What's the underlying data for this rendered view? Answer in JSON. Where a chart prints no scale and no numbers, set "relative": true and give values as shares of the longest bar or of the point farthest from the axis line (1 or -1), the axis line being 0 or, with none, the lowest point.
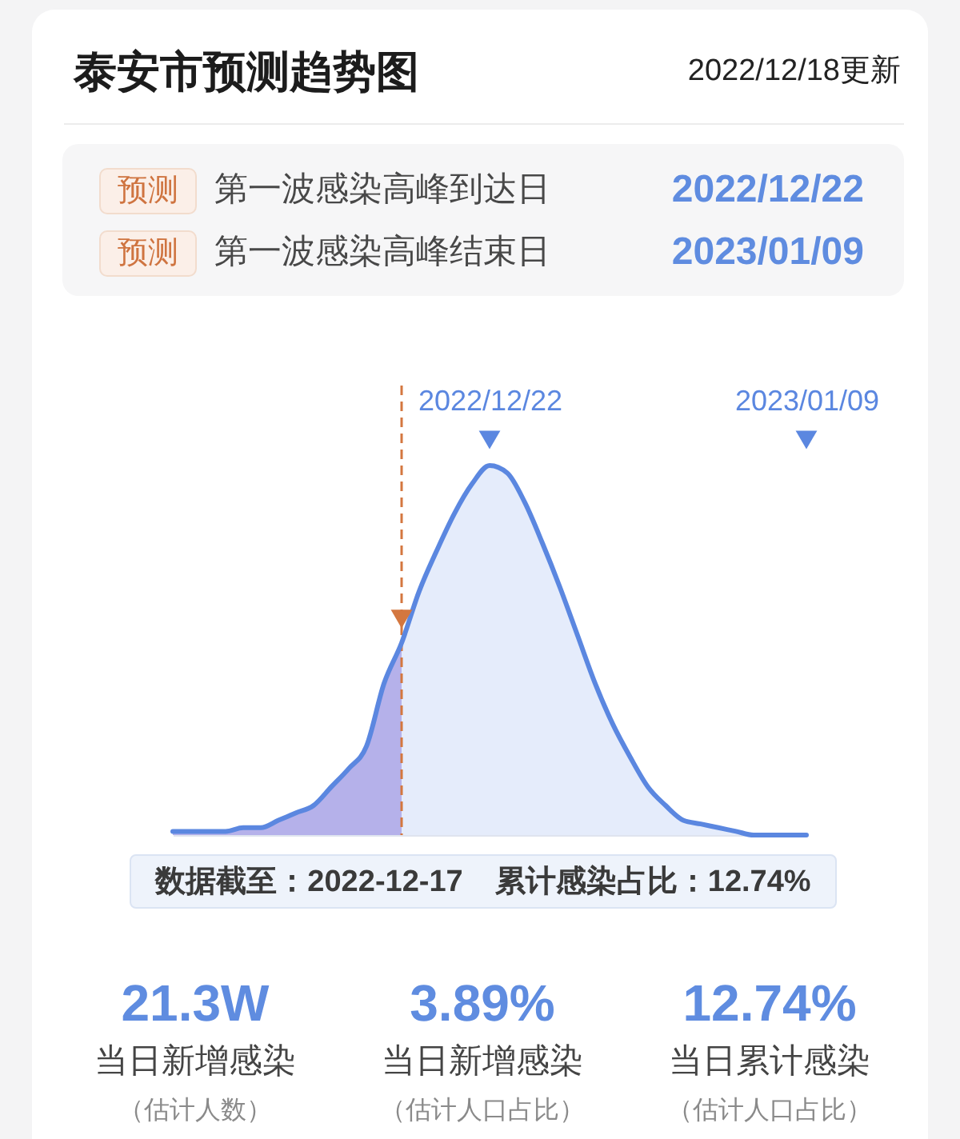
{
  "chart_data": {
    "type": "area",
    "title": "泰安市预测趋势图",
    "subtitle": "2022/12/18更新",
    "relative": true,
    "x": [
      "2022-12-04",
      "2022-12-05",
      "2022-12-06",
      "2022-12-07",
      "2022-12-08",
      "2022-12-09",
      "2022-12-10",
      "2022-12-11",
      "2022-12-12",
      "2022-12-13",
      "2022-12-14",
      "2022-12-15",
      "2022-12-16",
      "2022-12-17",
      "2022-12-18",
      "2022-12-19",
      "2022-12-20",
      "2022-12-21",
      "2022-12-22",
      "2022-12-23",
      "2022-12-24",
      "2022-12-25",
      "2022-12-26",
      "2022-12-27",
      "2022-12-28",
      "2022-12-29",
      "2022-12-30",
      "2022-12-31",
      "2023-01-01",
      "2023-01-02",
      "2023-01-03",
      "2023-01-04",
      "2023-01-05",
      "2023-01-06",
      "2023-01-07",
      "2023-01-08",
      "2023-01-09"
    ],
    "xlim": [
      "2022-12-04",
      "2023-01-09"
    ],
    "xticks": [
      {
        "value": "2022-12-22",
        "label": "2022/12/22"
      },
      {
        "value": "2023-01-09",
        "label": "2023/01/09"
      }
    ],
    "series": [
      {
        "color": "#b5b1ea",
        "values": [
          0.01,
          0.01,
          0.01,
          0.01,
          0.02,
          0.02,
          0.04,
          0.06,
          0.08,
          0.13,
          0.18,
          0.24,
          0.41,
          0.52,
          null,
          null,
          null,
          null,
          null,
          null,
          null,
          null,
          null,
          null,
          null,
          null,
          null,
          null,
          null,
          null,
          null,
          null,
          null,
          null,
          null,
          null,
          null
        ]
      },
      {
        "color": "#e5ecfb",
        "values": [
          null,
          null,
          null,
          null,
          null,
          null,
          null,
          null,
          null,
          null,
          null,
          null,
          null,
          0.52,
          0.66,
          0.77,
          0.87,
          0.95,
          1,
          0.98,
          0.9,
          0.79,
          0.67,
          0.54,
          0.41,
          0.3,
          0.21,
          0.13,
          0.08,
          0.04,
          0.03,
          0.02,
          0.01,
          0,
          0,
          0,
          0
        ]
      },
      {
        "type": "line",
        "color": "#5b87e0",
        "values": [
          0.01,
          0.01,
          0.01,
          0.01,
          0.02,
          0.02,
          0.04,
          0.06,
          0.08,
          0.13,
          0.18,
          0.24,
          0.41,
          0.52,
          0.66,
          0.77,
          0.87,
          0.95,
          1,
          0.98,
          0.9,
          0.79,
          0.67,
          0.54,
          0.41,
          0.3,
          0.21,
          0.13,
          0.08,
          0.04,
          0.03,
          0.02,
          0.01,
          0,
          0,
          0,
          0
        ]
      }
    ],
    "ref_lines": [
      {
        "axis": "x",
        "value": "2022-12-17",
        "color": "#d4773f",
        "line_style": "dashed"
      }
    ],
    "annotations": [
      "预测",
      "第一波感染高峰到达日",
      "2022/12/22",
      "预测",
      "第一波感染高峰结束日",
      "2023/01/09",
      "数据截至：2022-12-17",
      "累计感染占比：12.74%",
      "21.3W",
      "当日新增感染",
      "（估计人数）",
      "3.89%",
      "当日新增感染",
      "（估计人口占比）",
      "12.74%",
      "当日累计感染",
      "（估计人口占比）"
    ]
  }
}
